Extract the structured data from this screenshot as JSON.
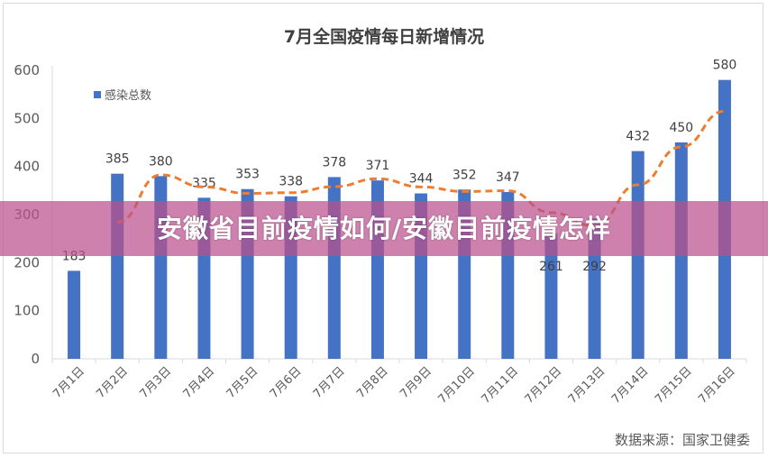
{
  "chart_data": {
    "type": "bar",
    "title": "7月全国疫情每日新增情况",
    "categories": [
      "7月1日",
      "7月2日",
      "7月3日",
      "7月4日",
      "7月5日",
      "7月6日",
      "7月7日",
      "7月8日",
      "7月9日",
      "7月10日",
      "7月11日",
      "7月12日",
      "7月13日",
      "7月14日",
      "7月15日",
      "7月16日"
    ],
    "series": [
      {
        "name": "感染总数",
        "values": [
          183,
          385,
          380,
          335,
          353,
          338,
          378,
          371,
          344,
          352,
          347,
          261,
          292,
          432,
          450,
          580
        ]
      }
    ],
    "trendline": {
      "type": "moving_average",
      "period": 2,
      "style": "dashed"
    },
    "ylim": [
      0,
      600
    ],
    "yticks": [
      0,
      100,
      200,
      300,
      400,
      500,
      600
    ],
    "grid": false,
    "legend": "top-left",
    "colors": {
      "bar": "#4472c4",
      "trend": "#ed7d31"
    },
    "source": "数据来源：国家卫健委"
  },
  "banner": {
    "text": "安徽省目前疫情如何/安徽目前疫情怎样"
  }
}
